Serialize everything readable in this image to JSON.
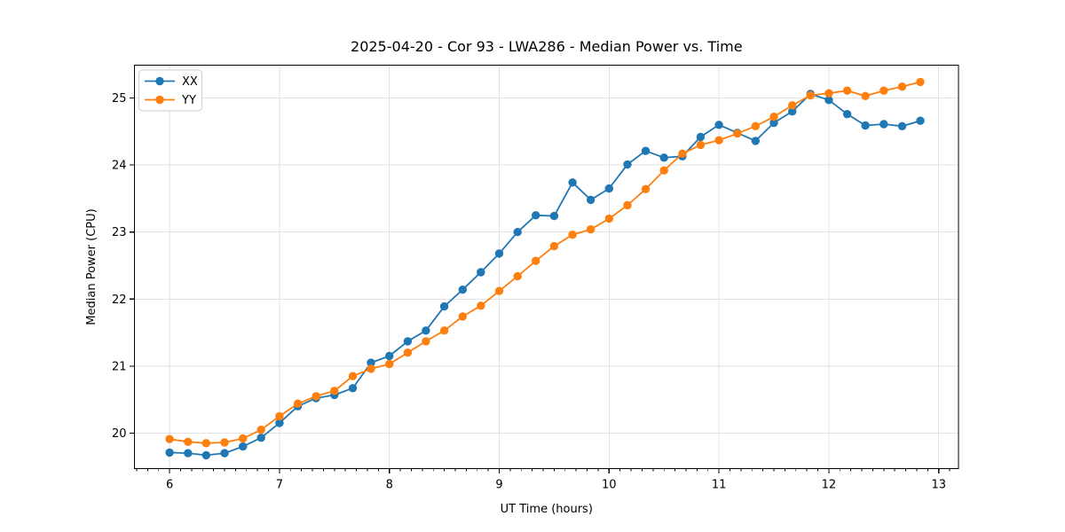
{
  "page": {
    "background": "#ffffff"
  },
  "chart_data": {
    "type": "line",
    "title": "2025-04-20 - Cor 93 - LWA286 - Median Power vs. Time",
    "xlabel": "UT Time (hours)",
    "ylabel": "Median Power (CPU)",
    "xlim": [
      5.68,
      13.18
    ],
    "ylim": [
      19.47,
      25.49
    ],
    "x_ticks": [
      6,
      7,
      8,
      9,
      10,
      11,
      12,
      13
    ],
    "y_ticks": [
      20,
      21,
      22,
      23,
      24,
      25
    ],
    "x_minor_step": 0.1,
    "grid": true,
    "grid_color": "#e2e2e2",
    "spine_color": "#000000",
    "legend_position": "upper-left",
    "x": [
      6.0,
      6.167,
      6.333,
      6.5,
      6.667,
      6.833,
      7.0,
      7.167,
      7.333,
      7.5,
      7.667,
      7.833,
      8.0,
      8.167,
      8.333,
      8.5,
      8.667,
      8.833,
      9.0,
      9.167,
      9.333,
      9.5,
      9.667,
      9.833,
      10.0,
      10.167,
      10.333,
      10.5,
      10.667,
      10.833,
      11.0,
      11.167,
      11.333,
      11.5,
      11.667,
      11.833,
      12.0,
      12.167,
      12.333,
      12.5,
      12.667,
      12.833
    ],
    "series": [
      {
        "name": "XX",
        "color": "#1f77b4",
        "marker": "circle",
        "values": [
          19.71,
          19.7,
          19.67,
          19.7,
          19.8,
          19.93,
          20.15,
          20.4,
          20.52,
          20.57,
          20.67,
          21.05,
          21.15,
          21.37,
          21.53,
          21.89,
          22.14,
          22.4,
          22.68,
          23.0,
          23.25,
          23.24,
          23.74,
          23.48,
          23.65,
          24.01,
          24.21,
          24.11,
          24.13,
          24.42,
          24.6,
          24.48,
          24.36,
          24.63,
          24.8,
          25.06,
          24.97,
          24.76,
          24.59,
          24.61,
          24.58,
          24.66
        ]
      },
      {
        "name": "YY",
        "color": "#ff7f0e",
        "marker": "circle",
        "values": [
          19.91,
          19.87,
          19.85,
          19.86,
          19.92,
          20.05,
          20.25,
          20.44,
          20.55,
          20.63,
          20.85,
          20.96,
          21.03,
          21.2,
          21.37,
          21.53,
          21.74,
          21.9,
          22.12,
          22.34,
          22.57,
          22.79,
          22.96,
          23.04,
          23.2,
          23.4,
          23.64,
          23.92,
          24.17,
          24.3,
          24.37,
          24.47,
          24.58,
          24.72,
          24.89,
          25.04,
          25.07,
          25.11,
          25.03,
          25.11,
          25.17,
          25.24
        ]
      }
    ]
  }
}
